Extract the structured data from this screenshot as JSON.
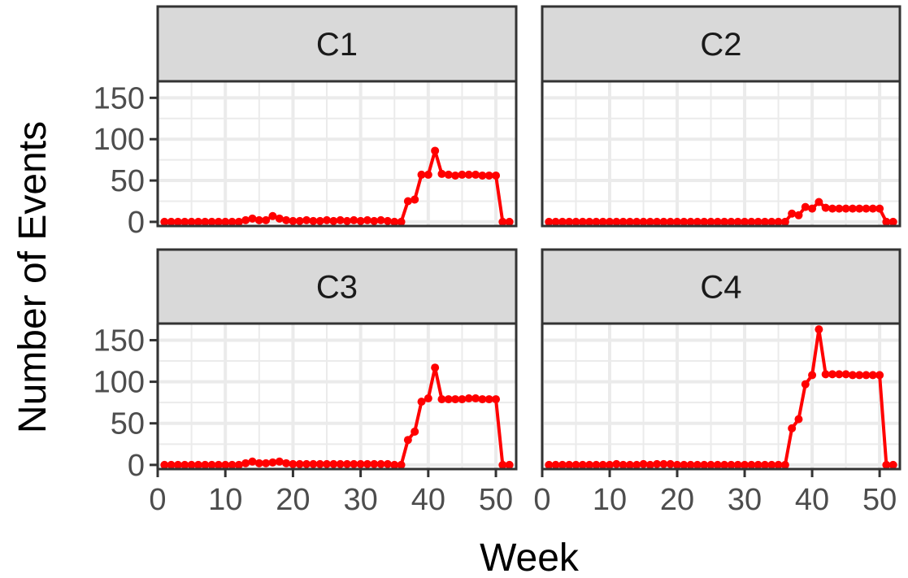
{
  "chart_data": {
    "type": "line",
    "layout": "facet-grid-2x2",
    "xlabel": "Week",
    "ylabel": "Number of Events",
    "xlim": [
      0,
      53
    ],
    "ylim": [
      -5,
      170
    ],
    "x_ticks": [
      0,
      10,
      20,
      30,
      40,
      50
    ],
    "y_ticks": [
      0,
      50,
      100,
      150
    ],
    "grid": true,
    "series_color": "#ff0000",
    "x": [
      1,
      2,
      3,
      4,
      5,
      6,
      7,
      8,
      9,
      10,
      11,
      12,
      13,
      14,
      15,
      16,
      17,
      18,
      19,
      20,
      21,
      22,
      23,
      24,
      25,
      26,
      27,
      28,
      29,
      30,
      31,
      32,
      33,
      34,
      35,
      36,
      37,
      38,
      39,
      40,
      41,
      42,
      43,
      44,
      45,
      46,
      47,
      48,
      49,
      50,
      51,
      52
    ],
    "panels": [
      {
        "label": "C1",
        "values": [
          0,
          0,
          0,
          0,
          0,
          0,
          0,
          0,
          0,
          0,
          0,
          0,
          2,
          4,
          2,
          2,
          7,
          4,
          2,
          1,
          1,
          2,
          1,
          1,
          2,
          1,
          2,
          1,
          2,
          1,
          2,
          1,
          2,
          1,
          0,
          0,
          25,
          27,
          57,
          57,
          86,
          58,
          57,
          56,
          57,
          57,
          57,
          56,
          56,
          56,
          0,
          0
        ]
      },
      {
        "label": "C2",
        "values": [
          0,
          0,
          0,
          0,
          0,
          0,
          0,
          0,
          0,
          0,
          0,
          0,
          0,
          0,
          0,
          0,
          0,
          0,
          0,
          0,
          0,
          0,
          0,
          0,
          0,
          0,
          0,
          0,
          0,
          0,
          0,
          0,
          0,
          0,
          0,
          0,
          10,
          8,
          18,
          16,
          24,
          17,
          16,
          16,
          16,
          16,
          16,
          16,
          16,
          16,
          0,
          0
        ]
      },
      {
        "label": "C3",
        "values": [
          0,
          0,
          0,
          0,
          0,
          0,
          0,
          0,
          0,
          0,
          0,
          0,
          2,
          4,
          2,
          2,
          3,
          4,
          2,
          1,
          1,
          1,
          1,
          1,
          1,
          1,
          1,
          1,
          1,
          1,
          1,
          1,
          1,
          1,
          0,
          0,
          30,
          40,
          76,
          80,
          117,
          79,
          79,
          79,
          79,
          80,
          80,
          79,
          79,
          79,
          0,
          0
        ]
      },
      {
        "label": "C4",
        "values": [
          0,
          0,
          0,
          0,
          0,
          0,
          0,
          0,
          0,
          0,
          1,
          0,
          0,
          0,
          1,
          0,
          1,
          1,
          1,
          0,
          0,
          0,
          0,
          0,
          0,
          0,
          0,
          0,
          0,
          0,
          0,
          0,
          0,
          0,
          0,
          0,
          44,
          55,
          97,
          108,
          163,
          109,
          109,
          109,
          109,
          108,
          108,
          108,
          108,
          108,
          0,
          0
        ]
      }
    ]
  }
}
